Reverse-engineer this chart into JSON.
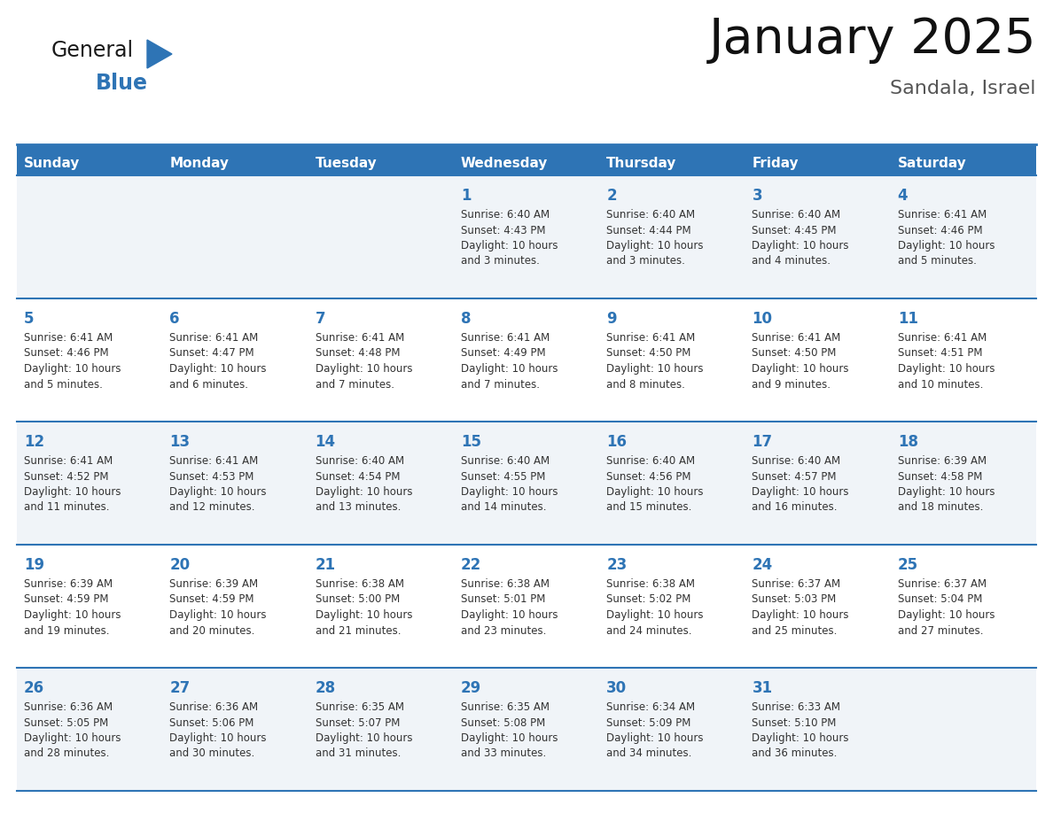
{
  "title": "January 2025",
  "subtitle": "Sandala, Israel",
  "days_of_week": [
    "Sunday",
    "Monday",
    "Tuesday",
    "Wednesday",
    "Thursday",
    "Friday",
    "Saturday"
  ],
  "header_bg": "#2E74B5",
  "header_text": "#FFFFFF",
  "row_bg_odd": "#F0F4F8",
  "row_bg_even": "#FFFFFF",
  "day_number_color": "#2E74B5",
  "cell_text_color": "#333333",
  "grid_line_color": "#2E74B5",
  "background_color": "#FFFFFF",
  "logo_general_color": "#1A1A1A",
  "logo_blue_color": "#2E74B5",
  "calendar_data": [
    {
      "day": 1,
      "col": 3,
      "row": 0,
      "sunrise": "6:40 AM",
      "sunset": "4:43 PM",
      "daylight_hours": 10,
      "daylight_minutes": 3
    },
    {
      "day": 2,
      "col": 4,
      "row": 0,
      "sunrise": "6:40 AM",
      "sunset": "4:44 PM",
      "daylight_hours": 10,
      "daylight_minutes": 3
    },
    {
      "day": 3,
      "col": 5,
      "row": 0,
      "sunrise": "6:40 AM",
      "sunset": "4:45 PM",
      "daylight_hours": 10,
      "daylight_minutes": 4
    },
    {
      "day": 4,
      "col": 6,
      "row": 0,
      "sunrise": "6:41 AM",
      "sunset": "4:46 PM",
      "daylight_hours": 10,
      "daylight_minutes": 5
    },
    {
      "day": 5,
      "col": 0,
      "row": 1,
      "sunrise": "6:41 AM",
      "sunset": "4:46 PM",
      "daylight_hours": 10,
      "daylight_minutes": 5
    },
    {
      "day": 6,
      "col": 1,
      "row": 1,
      "sunrise": "6:41 AM",
      "sunset": "4:47 PM",
      "daylight_hours": 10,
      "daylight_minutes": 6
    },
    {
      "day": 7,
      "col": 2,
      "row": 1,
      "sunrise": "6:41 AM",
      "sunset": "4:48 PM",
      "daylight_hours": 10,
      "daylight_minutes": 7
    },
    {
      "day": 8,
      "col": 3,
      "row": 1,
      "sunrise": "6:41 AM",
      "sunset": "4:49 PM",
      "daylight_hours": 10,
      "daylight_minutes": 7
    },
    {
      "day": 9,
      "col": 4,
      "row": 1,
      "sunrise": "6:41 AM",
      "sunset": "4:50 PM",
      "daylight_hours": 10,
      "daylight_minutes": 8
    },
    {
      "day": 10,
      "col": 5,
      "row": 1,
      "sunrise": "6:41 AM",
      "sunset": "4:50 PM",
      "daylight_hours": 10,
      "daylight_minutes": 9
    },
    {
      "day": 11,
      "col": 6,
      "row": 1,
      "sunrise": "6:41 AM",
      "sunset": "4:51 PM",
      "daylight_hours": 10,
      "daylight_minutes": 10
    },
    {
      "day": 12,
      "col": 0,
      "row": 2,
      "sunrise": "6:41 AM",
      "sunset": "4:52 PM",
      "daylight_hours": 10,
      "daylight_minutes": 11
    },
    {
      "day": 13,
      "col": 1,
      "row": 2,
      "sunrise": "6:41 AM",
      "sunset": "4:53 PM",
      "daylight_hours": 10,
      "daylight_minutes": 12
    },
    {
      "day": 14,
      "col": 2,
      "row": 2,
      "sunrise": "6:40 AM",
      "sunset": "4:54 PM",
      "daylight_hours": 10,
      "daylight_minutes": 13
    },
    {
      "day": 15,
      "col": 3,
      "row": 2,
      "sunrise": "6:40 AM",
      "sunset": "4:55 PM",
      "daylight_hours": 10,
      "daylight_minutes": 14
    },
    {
      "day": 16,
      "col": 4,
      "row": 2,
      "sunrise": "6:40 AM",
      "sunset": "4:56 PM",
      "daylight_hours": 10,
      "daylight_minutes": 15
    },
    {
      "day": 17,
      "col": 5,
      "row": 2,
      "sunrise": "6:40 AM",
      "sunset": "4:57 PM",
      "daylight_hours": 10,
      "daylight_minutes": 16
    },
    {
      "day": 18,
      "col": 6,
      "row": 2,
      "sunrise": "6:39 AM",
      "sunset": "4:58 PM",
      "daylight_hours": 10,
      "daylight_minutes": 18
    },
    {
      "day": 19,
      "col": 0,
      "row": 3,
      "sunrise": "6:39 AM",
      "sunset": "4:59 PM",
      "daylight_hours": 10,
      "daylight_minutes": 19
    },
    {
      "day": 20,
      "col": 1,
      "row": 3,
      "sunrise": "6:39 AM",
      "sunset": "4:59 PM",
      "daylight_hours": 10,
      "daylight_minutes": 20
    },
    {
      "day": 21,
      "col": 2,
      "row": 3,
      "sunrise": "6:38 AM",
      "sunset": "5:00 PM",
      "daylight_hours": 10,
      "daylight_minutes": 21
    },
    {
      "day": 22,
      "col": 3,
      "row": 3,
      "sunrise": "6:38 AM",
      "sunset": "5:01 PM",
      "daylight_hours": 10,
      "daylight_minutes": 23
    },
    {
      "day": 23,
      "col": 4,
      "row": 3,
      "sunrise": "6:38 AM",
      "sunset": "5:02 PM",
      "daylight_hours": 10,
      "daylight_minutes": 24
    },
    {
      "day": 24,
      "col": 5,
      "row": 3,
      "sunrise": "6:37 AM",
      "sunset": "5:03 PM",
      "daylight_hours": 10,
      "daylight_minutes": 25
    },
    {
      "day": 25,
      "col": 6,
      "row": 3,
      "sunrise": "6:37 AM",
      "sunset": "5:04 PM",
      "daylight_hours": 10,
      "daylight_minutes": 27
    },
    {
      "day": 26,
      "col": 0,
      "row": 4,
      "sunrise": "6:36 AM",
      "sunset": "5:05 PM",
      "daylight_hours": 10,
      "daylight_minutes": 28
    },
    {
      "day": 27,
      "col": 1,
      "row": 4,
      "sunrise": "6:36 AM",
      "sunset": "5:06 PM",
      "daylight_hours": 10,
      "daylight_minutes": 30
    },
    {
      "day": 28,
      "col": 2,
      "row": 4,
      "sunrise": "6:35 AM",
      "sunset": "5:07 PM",
      "daylight_hours": 10,
      "daylight_minutes": 31
    },
    {
      "day": 29,
      "col": 3,
      "row": 4,
      "sunrise": "6:35 AM",
      "sunset": "5:08 PM",
      "daylight_hours": 10,
      "daylight_minutes": 33
    },
    {
      "day": 30,
      "col": 4,
      "row": 4,
      "sunrise": "6:34 AM",
      "sunset": "5:09 PM",
      "daylight_hours": 10,
      "daylight_minutes": 34
    },
    {
      "day": 31,
      "col": 5,
      "row": 4,
      "sunrise": "6:33 AM",
      "sunset": "5:10 PM",
      "daylight_hours": 10,
      "daylight_minutes": 36
    }
  ]
}
